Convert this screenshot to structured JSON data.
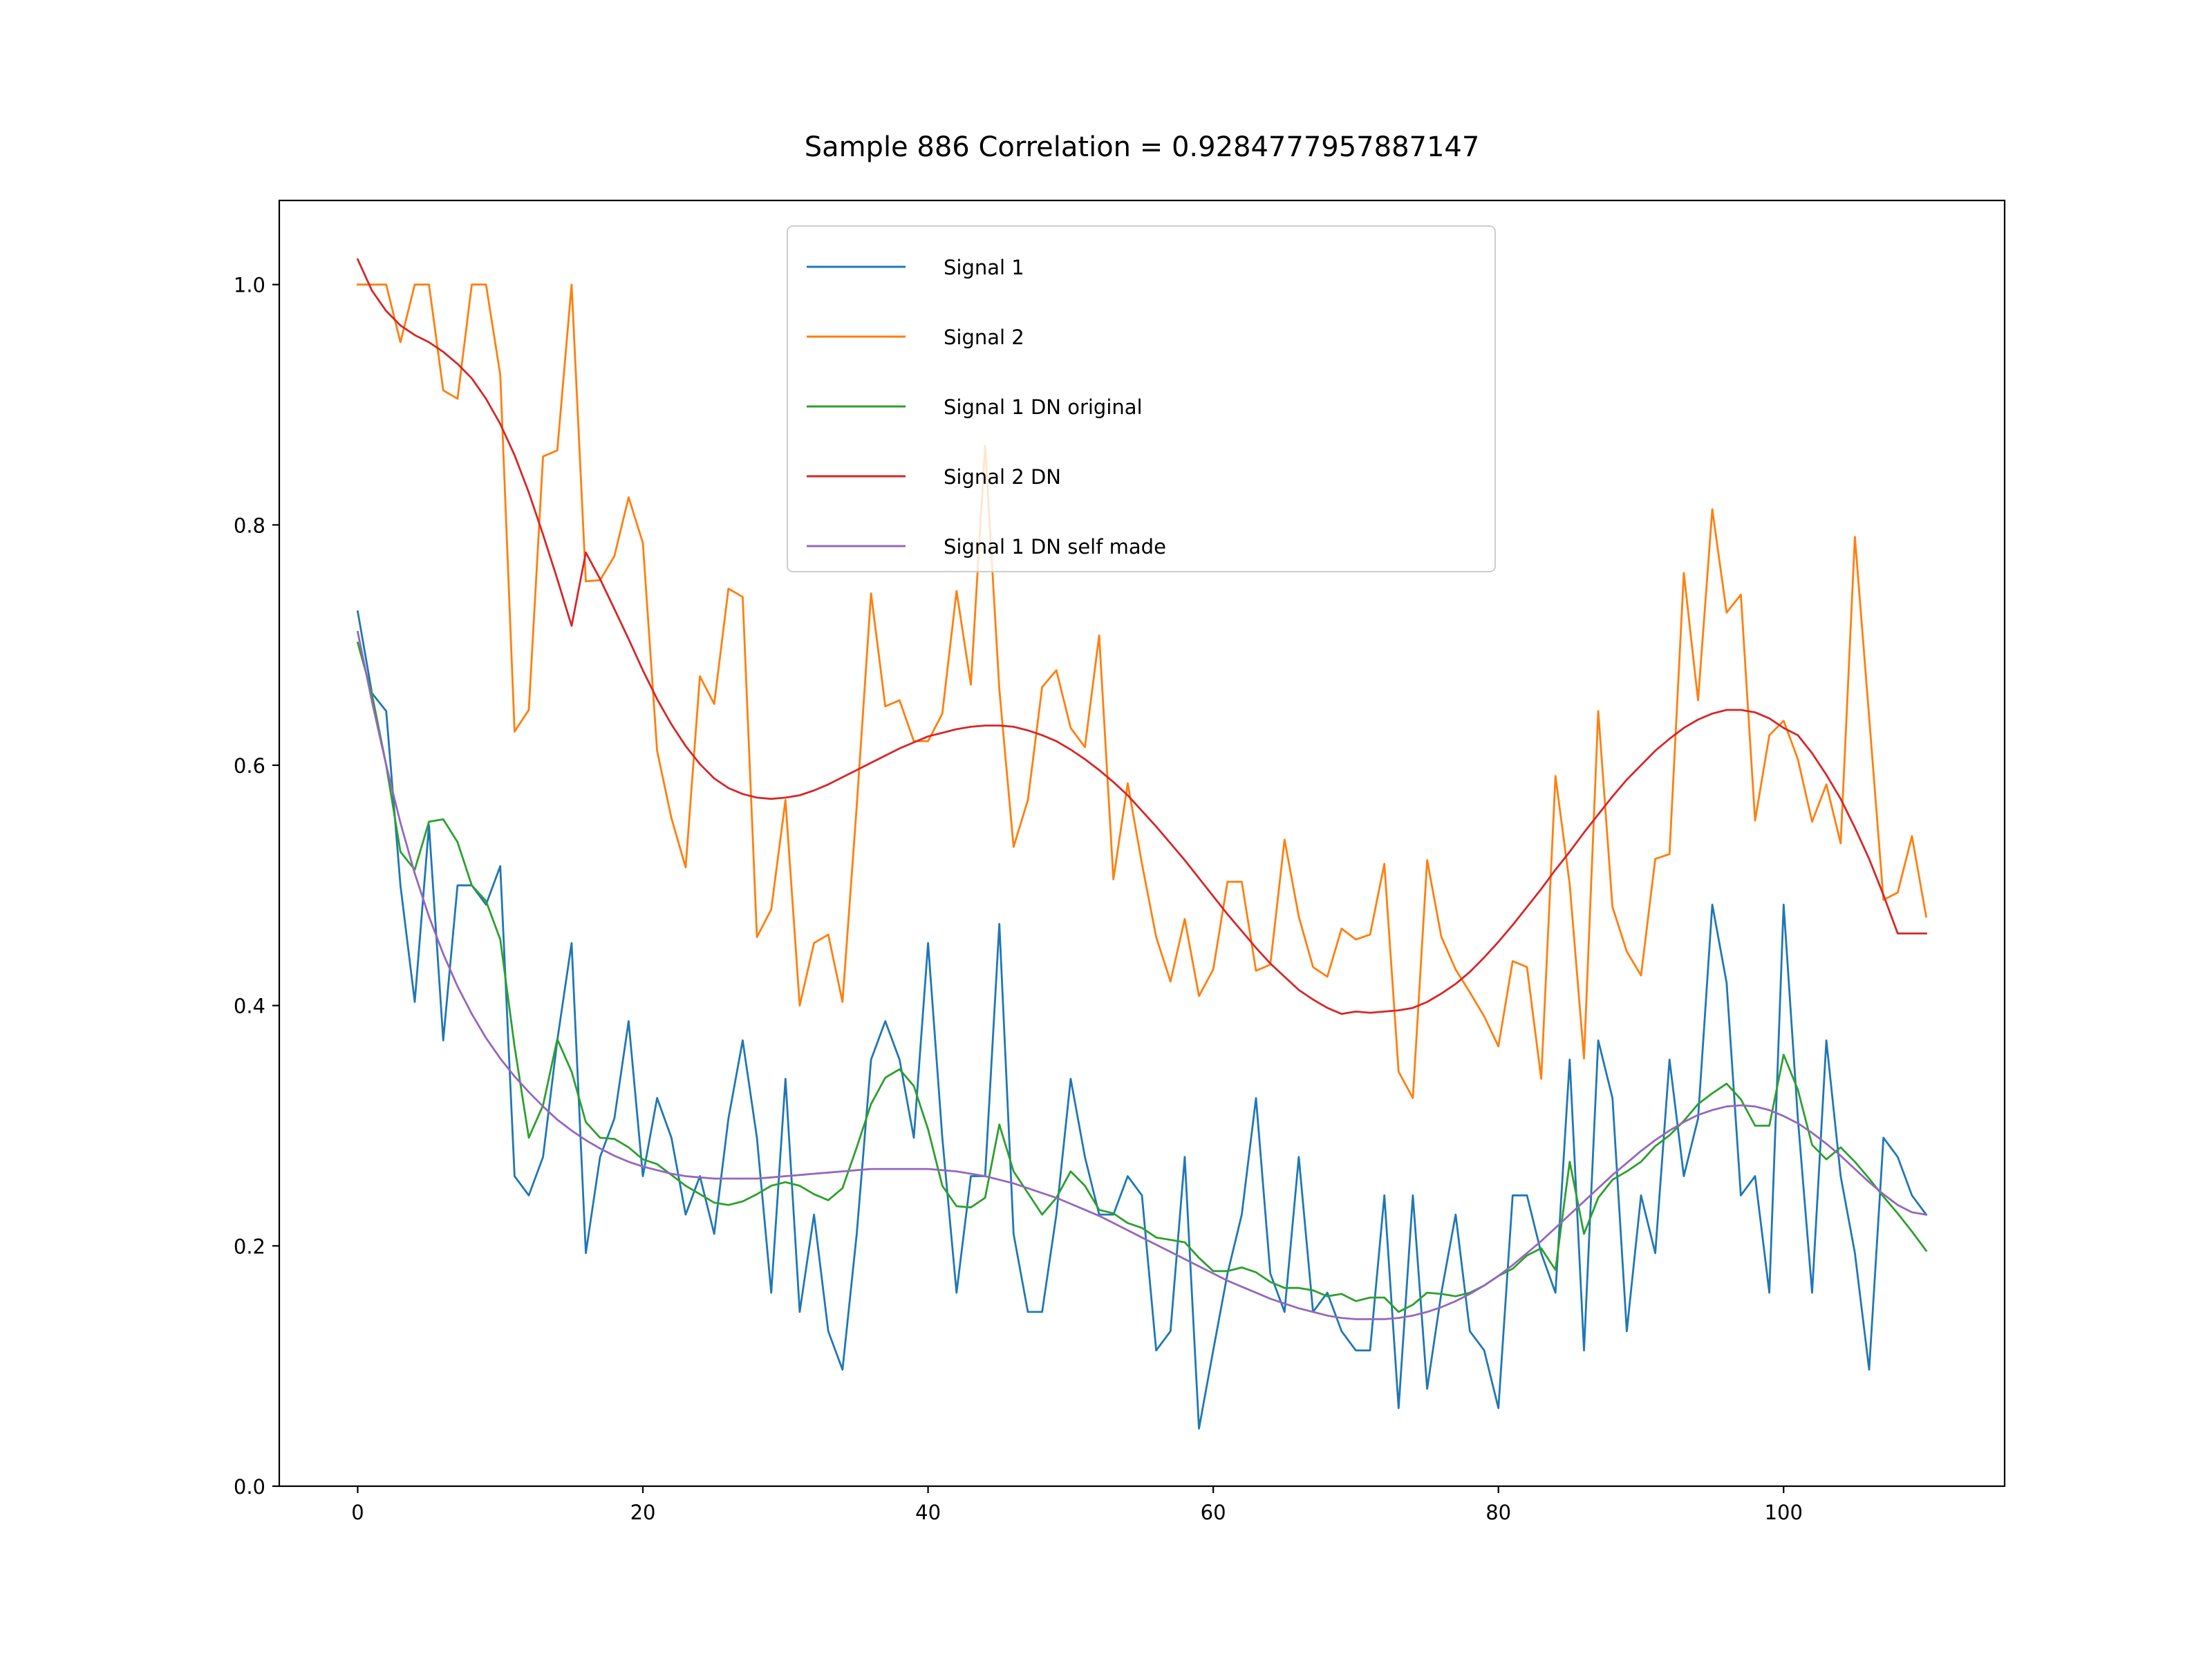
{
  "chart_data": {
    "type": "line",
    "title": "Sample 886 Correlation = 0.9284777957887147",
    "xlabel": "",
    "ylabel": "",
    "xlim": [
      -5.5,
      115.5
    ],
    "ylim": [
      0.0,
      1.07
    ],
    "x_ticks": [
      0,
      20,
      40,
      60,
      80,
      100
    ],
    "y_ticks": [
      0.0,
      0.2,
      0.4,
      0.6,
      0.8,
      1.0
    ],
    "x_tick_labels": [
      "0",
      "20",
      "40",
      "60",
      "80",
      "100"
    ],
    "y_tick_labels": [
      "0.0",
      "0.2",
      "0.4",
      "0.6",
      "0.8",
      "1.0"
    ],
    "grid": false,
    "legend_position": "top-center",
    "series": [
      {
        "name": "Signal 1",
        "color": "#1f77b4",
        "x": [
          0,
          1,
          2,
          3,
          4,
          5,
          6,
          7,
          8,
          9,
          10,
          11,
          12,
          13,
          14,
          15,
          16,
          17,
          18,
          19,
          20,
          21,
          22,
          23,
          24,
          25,
          26,
          27,
          28,
          29,
          30,
          31,
          32,
          33,
          34,
          35,
          36,
          37,
          38,
          39,
          40,
          41,
          42,
          43,
          44,
          45,
          46,
          47,
          48,
          49,
          50,
          51,
          52,
          53,
          54,
          55,
          56,
          57,
          58,
          59,
          60,
          61,
          62,
          63,
          64,
          65,
          66,
          67,
          68,
          69,
          70,
          71,
          72,
          73,
          74,
          75,
          76,
          77,
          78,
          79,
          80,
          81,
          82,
          83,
          84,
          85,
          86,
          87,
          88,
          89,
          90,
          91,
          92,
          93,
          94,
          95,
          96,
          97,
          98,
          99,
          100,
          101,
          102,
          103,
          104,
          105,
          106,
          107,
          108,
          109,
          110
        ],
        "y": [
          0.728,
          0.66,
          0.645,
          0.5,
          0.403,
          0.55,
          0.371,
          0.5,
          0.5,
          0.484,
          0.516,
          0.258,
          0.242,
          0.274,
          0.371,
          0.452,
          0.194,
          0.274,
          0.306,
          0.387,
          0.258,
          0.323,
          0.29,
          0.226,
          0.258,
          0.21,
          0.306,
          0.371,
          0.29,
          0.161,
          0.339,
          0.145,
          0.226,
          0.129,
          0.097,
          0.21,
          0.355,
          0.387,
          0.355,
          0.29,
          0.452,
          0.29,
          0.161,
          0.258,
          0.258,
          0.468,
          0.21,
          0.145,
          0.145,
          0.226,
          0.339,
          0.274,
          0.226,
          0.226,
          0.258,
          0.242,
          0.113,
          0.129,
          0.274,
          0.048,
          0.113,
          0.177,
          0.226,
          0.323,
          0.177,
          0.145,
          0.274,
          0.145,
          0.161,
          0.129,
          0.113,
          0.113,
          0.242,
          0.065,
          0.242,
          0.081,
          0.161,
          0.226,
          0.129,
          0.113,
          0.065,
          0.242,
          0.242,
          0.194,
          0.161,
          0.355,
          0.113,
          0.371,
          0.323,
          0.129,
          0.242,
          0.194,
          0.355,
          0.258,
          0.306,
          0.484,
          0.419,
          0.242,
          0.258,
          0.161,
          0.484,
          0.306,
          0.161,
          0.371,
          0.258,
          0.194,
          0.097,
          0.29,
          0.274,
          0.242,
          0.226
        ]
      },
      {
        "name": "Signal 2",
        "color": "#ff7f0e",
        "x": [
          0,
          1,
          2,
          3,
          4,
          5,
          6,
          7,
          8,
          9,
          10,
          11,
          12,
          13,
          14,
          15,
          16,
          17,
          18,
          19,
          20,
          21,
          22,
          23,
          24,
          25,
          26,
          27,
          28,
          29,
          30,
          31,
          32,
          33,
          34,
          35,
          36,
          37,
          38,
          39,
          40,
          41,
          42,
          43,
          44,
          45,
          46,
          47,
          48,
          49,
          50,
          51,
          52,
          53,
          54,
          55,
          56,
          57,
          58,
          59,
          60,
          61,
          62,
          63,
          64,
          65,
          66,
          67,
          68,
          69,
          70,
          71,
          72,
          73,
          74,
          75,
          76,
          77,
          78,
          79,
          80,
          81,
          82,
          83,
          84,
          85,
          86,
          87,
          88,
          89,
          90,
          91,
          92,
          93,
          94,
          95,
          96,
          97,
          98,
          99,
          100,
          101,
          102,
          103,
          104,
          105,
          106,
          107,
          108,
          109,
          110
        ],
        "y": [
          1.0,
          1.0,
          1.0,
          0.952,
          1.0,
          1.0,
          0.912,
          0.905,
          1.0,
          1.0,
          0.925,
          0.628,
          0.646,
          0.857,
          0.862,
          1.0,
          0.753,
          0.754,
          0.774,
          0.823,
          0.785,
          0.612,
          0.556,
          0.515,
          0.674,
          0.651,
          0.747,
          0.74,
          0.457,
          0.48,
          0.571,
          0.4,
          0.452,
          0.459,
          0.403,
          0.566,
          0.743,
          0.649,
          0.654,
          0.62,
          0.62,
          0.643,
          0.745,
          0.667,
          0.866,
          0.663,
          0.532,
          0.571,
          0.665,
          0.679,
          0.631,
          0.615,
          0.708,
          0.505,
          0.585,
          0.518,
          0.457,
          0.42,
          0.472,
          0.408,
          0.43,
          0.503,
          0.503,
          0.429,
          0.434,
          0.538,
          0.474,
          0.432,
          0.424,
          0.464,
          0.455,
          0.459,
          0.518,
          0.345,
          0.323,
          0.521,
          0.457,
          0.43,
          0.411,
          0.391,
          0.366,
          0.437,
          0.432,
          0.339,
          0.591,
          0.501,
          0.356,
          0.645,
          0.482,
          0.445,
          0.425,
          0.522,
          0.526,
          0.76,
          0.654,
          0.813,
          0.727,
          0.742,
          0.554,
          0.625,
          0.637,
          0.605,
          0.553,
          0.584,
          0.535,
          0.79,
          0.64,
          0.488,
          0.494,
          0.541,
          0.474
        ]
      },
      {
        "name": "Signal 1 DN original",
        "color": "#2ca02c",
        "x": [
          0,
          1,
          2,
          3,
          4,
          5,
          6,
          7,
          8,
          9,
          10,
          11,
          12,
          13,
          14,
          15,
          16,
          17,
          18,
          19,
          20,
          21,
          22,
          23,
          24,
          25,
          26,
          27,
          28,
          29,
          30,
          31,
          32,
          33,
          34,
          35,
          36,
          37,
          38,
          39,
          40,
          41,
          42,
          43,
          44,
          45,
          46,
          47,
          48,
          49,
          50,
          51,
          52,
          53,
          54,
          55,
          56,
          57,
          58,
          59,
          60,
          61,
          62,
          63,
          64,
          65,
          66,
          67,
          68,
          69,
          70,
          71,
          72,
          73,
          74,
          75,
          76,
          77,
          78,
          79,
          80,
          81,
          82,
          83,
          84,
          85,
          86,
          87,
          88,
          89,
          90,
          91,
          92,
          93,
          94,
          95,
          96,
          97,
          98,
          99,
          100,
          101,
          102,
          103,
          104,
          105,
          106,
          107,
          108,
          109,
          110
        ],
        "y": [
          0.702,
          0.659,
          0.6,
          0.528,
          0.513,
          0.553,
          0.555,
          0.536,
          0.5,
          0.487,
          0.455,
          0.366,
          0.29,
          0.317,
          0.372,
          0.345,
          0.303,
          0.29,
          0.289,
          0.282,
          0.272,
          0.268,
          0.259,
          0.25,
          0.243,
          0.236,
          0.234,
          0.237,
          0.243,
          0.25,
          0.253,
          0.25,
          0.243,
          0.238,
          0.248,
          0.282,
          0.318,
          0.34,
          0.347,
          0.333,
          0.297,
          0.25,
          0.233,
          0.232,
          0.24,
          0.301,
          0.262,
          0.244,
          0.226,
          0.24,
          0.262,
          0.25,
          0.23,
          0.227,
          0.219,
          0.215,
          0.207,
          0.205,
          0.203,
          0.19,
          0.179,
          0.179,
          0.182,
          0.178,
          0.17,
          0.165,
          0.165,
          0.163,
          0.158,
          0.16,
          0.154,
          0.157,
          0.157,
          0.145,
          0.151,
          0.161,
          0.16,
          0.158,
          0.161,
          0.167,
          0.175,
          0.181,
          0.192,
          0.198,
          0.18,
          0.27,
          0.21,
          0.24,
          0.255,
          0.262,
          0.27,
          0.283,
          0.292,
          0.304,
          0.318,
          0.327,
          0.335,
          0.322,
          0.3,
          0.3,
          0.359,
          0.33,
          0.284,
          0.272,
          0.282,
          0.27,
          0.256,
          0.241,
          0.227,
          0.212,
          0.196
        ]
      },
      {
        "name": "Signal 2 DN",
        "color": "#d62728",
        "x": [
          0,
          1,
          2,
          3,
          4,
          5,
          6,
          7,
          8,
          9,
          10,
          11,
          12,
          13,
          14,
          15,
          16,
          17,
          18,
          19,
          20,
          21,
          22,
          23,
          24,
          25,
          26,
          27,
          28,
          29,
          30,
          31,
          32,
          33,
          34,
          35,
          36,
          37,
          38,
          39,
          40,
          41,
          42,
          43,
          44,
          45,
          46,
          47,
          48,
          49,
          50,
          51,
          52,
          53,
          54,
          55,
          56,
          57,
          58,
          59,
          60,
          61,
          62,
          63,
          64,
          65,
          66,
          67,
          68,
          69,
          70,
          71,
          72,
          73,
          74,
          75,
          76,
          77,
          78,
          79,
          80,
          81,
          82,
          83,
          84,
          85,
          86,
          87,
          88,
          89,
          90,
          91,
          92,
          93,
          94,
          95,
          96,
          97,
          98,
          99,
          100,
          101,
          102,
          103,
          104,
          105,
          106,
          107,
          108,
          109,
          110
        ],
        "y": [
          1.021,
          0.995,
          0.978,
          0.966,
          0.958,
          0.952,
          0.944,
          0.934,
          0.922,
          0.905,
          0.884,
          0.858,
          0.827,
          0.792,
          0.755,
          0.716,
          0.777,
          0.755,
          0.73,
          0.705,
          0.679,
          0.655,
          0.634,
          0.616,
          0.601,
          0.589,
          0.581,
          0.576,
          0.573,
          0.572,
          0.573,
          0.575,
          0.579,
          0.584,
          0.59,
          0.596,
          0.602,
          0.608,
          0.614,
          0.619,
          0.624,
          0.627,
          0.63,
          0.632,
          0.633,
          0.633,
          0.632,
          0.629,
          0.625,
          0.62,
          0.613,
          0.605,
          0.596,
          0.586,
          0.575,
          0.562,
          0.549,
          0.535,
          0.521,
          0.506,
          0.491,
          0.476,
          0.462,
          0.448,
          0.435,
          0.424,
          0.413,
          0.405,
          0.398,
          0.393,
          0.395,
          0.394,
          0.395,
          0.396,
          0.398,
          0.403,
          0.41,
          0.418,
          0.428,
          0.44,
          0.453,
          0.467,
          0.482,
          0.497,
          0.513,
          0.528,
          0.544,
          0.559,
          0.574,
          0.588,
          0.6,
          0.612,
          0.622,
          0.631,
          0.638,
          0.643,
          0.646,
          0.646,
          0.644,
          0.639,
          0.631,
          0.625,
          0.61,
          0.592,
          0.572,
          0.548,
          0.522,
          0.492,
          0.46,
          0.46,
          0.46
        ]
      },
      {
        "name": "Signal 1 DN self made",
        "color": "#9467bd",
        "x": [
          0,
          1,
          2,
          3,
          4,
          5,
          6,
          7,
          8,
          9,
          10,
          11,
          12,
          13,
          14,
          15,
          16,
          17,
          18,
          19,
          20,
          21,
          22,
          23,
          24,
          25,
          26,
          27,
          28,
          29,
          30,
          31,
          32,
          33,
          34,
          35,
          36,
          37,
          38,
          39,
          40,
          41,
          42,
          43,
          44,
          45,
          46,
          47,
          48,
          49,
          50,
          51,
          52,
          53,
          54,
          55,
          56,
          57,
          58,
          59,
          60,
          61,
          62,
          63,
          64,
          65,
          66,
          67,
          68,
          69,
          70,
          71,
          72,
          73,
          74,
          75,
          76,
          77,
          78,
          79,
          80,
          81,
          82,
          83,
          84,
          85,
          86,
          87,
          88,
          89,
          90,
          91,
          92,
          93,
          94,
          95,
          96,
          97,
          98,
          99,
          100,
          101,
          102,
          103,
          104,
          105,
          106,
          107,
          108,
          109,
          110
        ],
        "y": [
          0.711,
          0.653,
          0.6,
          0.552,
          0.51,
          0.474,
          0.443,
          0.416,
          0.393,
          0.373,
          0.356,
          0.341,
          0.328,
          0.316,
          0.305,
          0.296,
          0.288,
          0.281,
          0.275,
          0.27,
          0.266,
          0.263,
          0.26,
          0.258,
          0.257,
          0.256,
          0.256,
          0.256,
          0.256,
          0.257,
          0.258,
          0.259,
          0.26,
          0.261,
          0.262,
          0.263,
          0.264,
          0.264,
          0.264,
          0.264,
          0.264,
          0.263,
          0.262,
          0.26,
          0.258,
          0.255,
          0.252,
          0.248,
          0.244,
          0.24,
          0.235,
          0.23,
          0.225,
          0.219,
          0.213,
          0.207,
          0.201,
          0.195,
          0.189,
          0.183,
          0.177,
          0.171,
          0.166,
          0.161,
          0.156,
          0.152,
          0.148,
          0.145,
          0.142,
          0.14,
          0.139,
          0.139,
          0.139,
          0.14,
          0.142,
          0.145,
          0.149,
          0.154,
          0.16,
          0.167,
          0.175,
          0.184,
          0.194,
          0.204,
          0.215,
          0.226,
          0.237,
          0.248,
          0.259,
          0.269,
          0.279,
          0.288,
          0.296,
          0.303,
          0.309,
          0.313,
          0.316,
          0.317,
          0.316,
          0.313,
          0.308,
          0.302,
          0.294,
          0.285,
          0.275,
          0.264,
          0.253,
          0.243,
          0.234,
          0.228,
          0.226
        ]
      }
    ]
  }
}
